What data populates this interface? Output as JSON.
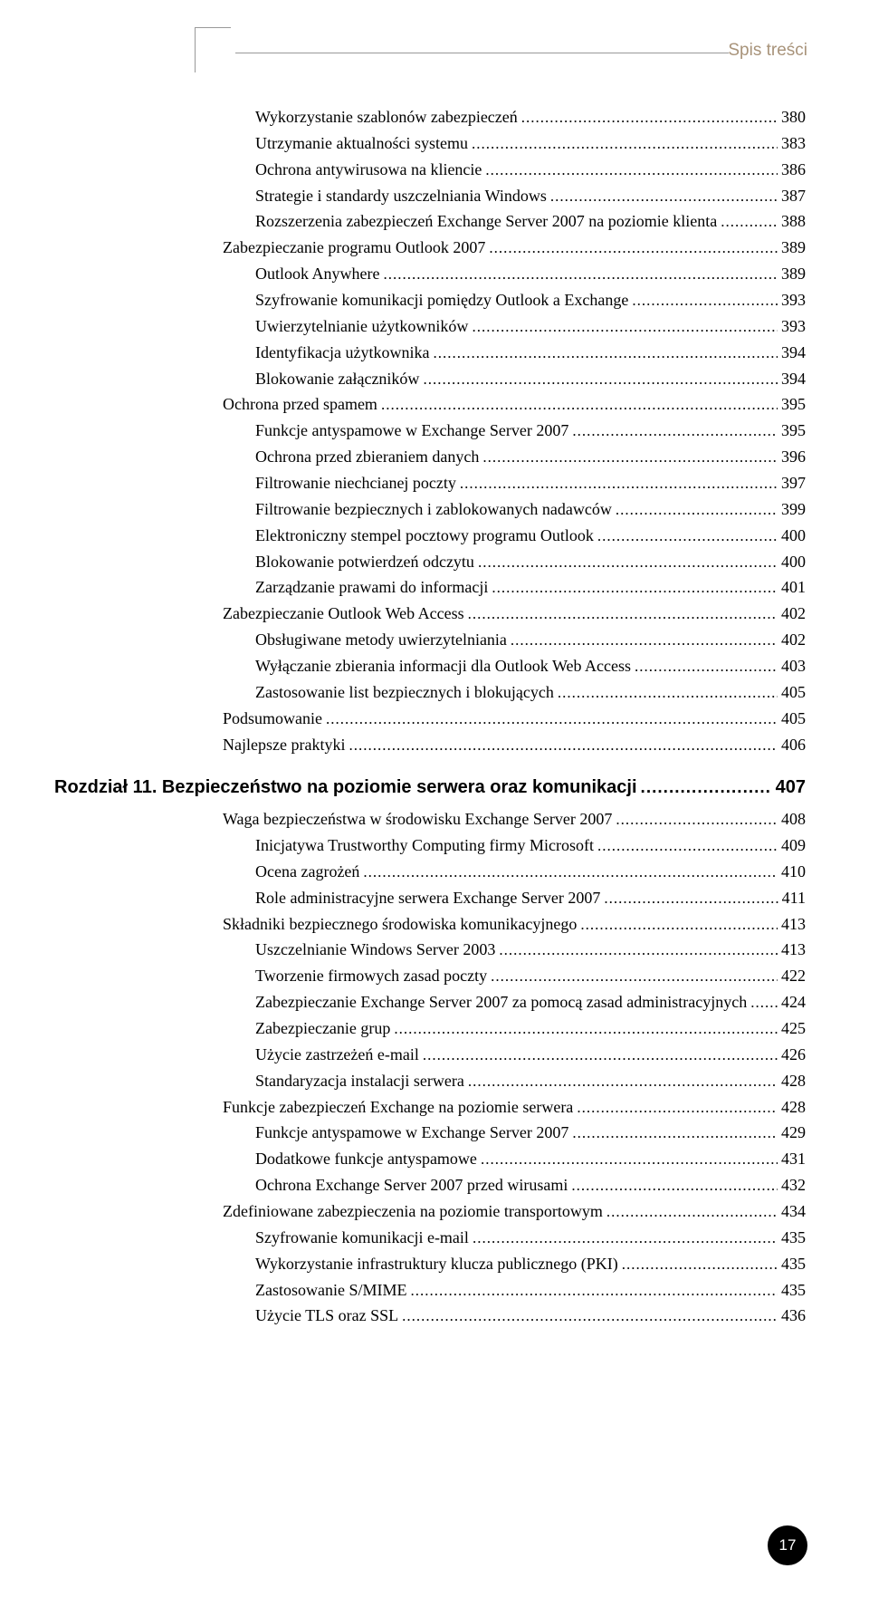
{
  "header_label": "Spis treści",
  "page_number": "17",
  "chapter": {
    "title": "Rozdział 11. Bezpieczeństwo na poziomie serwera oraz komunikacji",
    "page": "407"
  },
  "entries_top": [
    {
      "indent": 2,
      "title": "Wykorzystanie szablonów zabezpieczeń",
      "page": "380"
    },
    {
      "indent": 2,
      "title": "Utrzymanie aktualności systemu",
      "page": "383"
    },
    {
      "indent": 2,
      "title": "Ochrona antywirusowa na kliencie",
      "page": "386"
    },
    {
      "indent": 2,
      "title": "Strategie i standardy uszczelniania Windows",
      "page": "387"
    },
    {
      "indent": 2,
      "title": "Rozszerzenia zabezpieczeń Exchange Server 2007 na poziomie klienta",
      "page": "388"
    },
    {
      "indent": 1,
      "title": "Zabezpieczanie programu Outlook 2007",
      "page": "389"
    },
    {
      "indent": 2,
      "title": "Outlook Anywhere",
      "page": "389"
    },
    {
      "indent": 2,
      "title": "Szyfrowanie komunikacji pomiędzy Outlook a Exchange",
      "page": "393"
    },
    {
      "indent": 2,
      "title": "Uwierzytelnianie użytkowników",
      "page": "393"
    },
    {
      "indent": 2,
      "title": "Identyfikacja użytkownika",
      "page": "394"
    },
    {
      "indent": 2,
      "title": "Blokowanie załączników",
      "page": "394"
    },
    {
      "indent": 1,
      "title": "Ochrona przed spamem",
      "page": "395"
    },
    {
      "indent": 2,
      "title": "Funkcje antyspamowe w Exchange Server 2007",
      "page": "395"
    },
    {
      "indent": 2,
      "title": "Ochrona przed zbieraniem danych",
      "page": "396"
    },
    {
      "indent": 2,
      "title": "Filtrowanie niechcianej poczty",
      "page": "397"
    },
    {
      "indent": 2,
      "title": "Filtrowanie bezpiecznych i zablokowanych nadawców",
      "page": "399"
    },
    {
      "indent": 2,
      "title": "Elektroniczny stempel pocztowy programu Outlook",
      "page": "400"
    },
    {
      "indent": 2,
      "title": "Blokowanie potwierdzeń odczytu",
      "page": "400"
    },
    {
      "indent": 2,
      "title": "Zarządzanie prawami do informacji",
      "page": "401"
    },
    {
      "indent": 1,
      "title": "Zabezpieczanie Outlook Web Access",
      "page": "402"
    },
    {
      "indent": 2,
      "title": "Obsługiwane metody uwierzytelniania",
      "page": "402"
    },
    {
      "indent": 2,
      "title": "Wyłączanie zbierania informacji dla Outlook Web Access",
      "page": "403"
    },
    {
      "indent": 2,
      "title": "Zastosowanie list bezpiecznych i blokujących",
      "page": "405"
    },
    {
      "indent": 1,
      "title": "Podsumowanie",
      "page": "405"
    },
    {
      "indent": 1,
      "title": "Najlepsze praktyki",
      "page": "406"
    }
  ],
  "entries_bottom": [
    {
      "indent": 1,
      "title": "Waga bezpieczeństwa w środowisku Exchange Server 2007",
      "page": "408"
    },
    {
      "indent": 2,
      "title": "Inicjatywa Trustworthy Computing firmy Microsoft",
      "page": "409"
    },
    {
      "indent": 2,
      "title": "Ocena zagrożeń",
      "page": "410"
    },
    {
      "indent": 2,
      "title": "Role administracyjne serwera Exchange Server 2007",
      "page": "411"
    },
    {
      "indent": 1,
      "title": "Składniki bezpiecznego środowiska komunikacyjnego",
      "page": "413"
    },
    {
      "indent": 2,
      "title": "Uszczelnianie Windows Server 2003",
      "page": "413"
    },
    {
      "indent": 2,
      "title": "Tworzenie firmowych zasad poczty",
      "page": "422"
    },
    {
      "indent": 2,
      "title": "Zabezpieczanie Exchange Server 2007 za pomocą zasad administracyjnych",
      "page": "424"
    },
    {
      "indent": 2,
      "title": "Zabezpieczanie grup",
      "page": "425"
    },
    {
      "indent": 2,
      "title": "Użycie zastrzeżeń e-mail",
      "page": "426"
    },
    {
      "indent": 2,
      "title": "Standaryzacja instalacji serwera",
      "page": "428"
    },
    {
      "indent": 1,
      "title": "Funkcje zabezpieczeń Exchange na poziomie serwera",
      "page": "428"
    },
    {
      "indent": 2,
      "title": "Funkcje antyspamowe w Exchange Server 2007",
      "page": "429"
    },
    {
      "indent": 2,
      "title": "Dodatkowe funkcje antyspamowe",
      "page": "431"
    },
    {
      "indent": 2,
      "title": "Ochrona Exchange Server 2007 przed wirusami",
      "page": "432"
    },
    {
      "indent": 1,
      "title": "Zdefiniowane zabezpieczenia na poziomie transportowym",
      "page": "434"
    },
    {
      "indent": 2,
      "title": "Szyfrowanie komunikacji e-mail",
      "page": "435"
    },
    {
      "indent": 2,
      "title": "Wykorzystanie infrastruktury klucza publicznego (PKI)",
      "page": "435"
    },
    {
      "indent": 2,
      "title": "Zastosowanie S/MIME",
      "page": "435"
    },
    {
      "indent": 2,
      "title": "Użycie TLS oraz SSL",
      "page": "436"
    }
  ]
}
